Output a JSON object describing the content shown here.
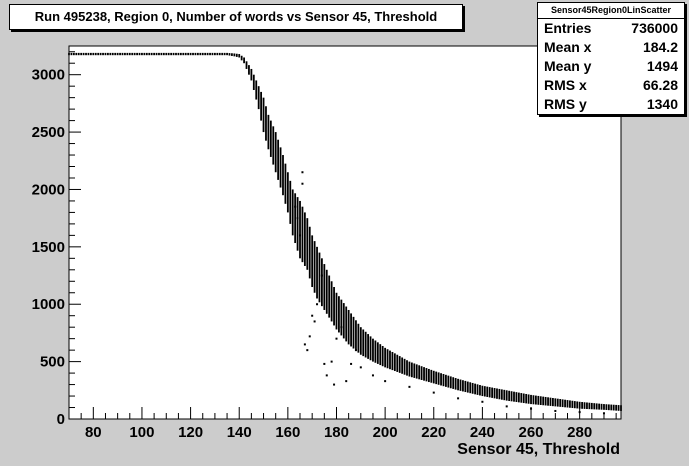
{
  "chart_data": {
    "type": "scatter",
    "title": "Run 495238, Region 0, Number of words vs Sensor 45, Threshold",
    "xlabel": "Sensor 45, Threshold",
    "ylabel": "",
    "xlim": [
      70,
      297
    ],
    "ylim": [
      0,
      3250
    ],
    "x_ticks": [
      80,
      100,
      120,
      140,
      160,
      180,
      200,
      220,
      240,
      260,
      280
    ],
    "y_ticks": [
      0,
      500,
      1000,
      1500,
      2000,
      2500,
      3000
    ],
    "grid": false,
    "legend": "none",
    "series": [
      {
        "x": [
          70,
          80,
          90,
          100,
          110,
          120,
          130,
          135,
          138,
          140,
          142,
          145,
          148,
          150,
          152,
          155,
          158,
          160,
          162,
          165,
          168,
          170,
          172,
          175,
          178,
          180,
          185,
          190,
          195,
          200,
          205,
          210,
          220,
          230,
          240,
          250,
          260,
          270,
          280,
          290,
          297
        ],
        "y_top": [
          3190,
          3190,
          3190,
          3190,
          3190,
          3190,
          3190,
          3190,
          3185,
          3180,
          3150,
          3050,
          2900,
          2800,
          2650,
          2500,
          2300,
          2150,
          2000,
          1900,
          1750,
          1600,
          1500,
          1350,
          1200,
          1100,
          950,
          800,
          700,
          620,
          560,
          500,
          420,
          350,
          290,
          250,
          210,
          180,
          150,
          130,
          120
        ],
        "y_bottom": [
          3170,
          3170,
          3170,
          3170,
          3170,
          3170,
          3170,
          3170,
          3160,
          3150,
          3100,
          2950,
          2700,
          2500,
          2350,
          2150,
          1950,
          1800,
          1600,
          1400,
          1300,
          1150,
          1050,
          950,
          850,
          780,
          650,
          560,
          500,
          450,
          410,
          370,
          310,
          250,
          200,
          160,
          130,
          110,
          90,
          80,
          70
        ]
      }
    ],
    "outliers": [
      {
        "x": 163,
        "y": 1850
      },
      {
        "x": 164,
        "y": 1750
      },
      {
        "x": 165,
        "y": 1600
      },
      {
        "x": 166,
        "y": 2150
      },
      {
        "x": 166,
        "y": 2050
      },
      {
        "x": 167,
        "y": 650
      },
      {
        "x": 168,
        "y": 600
      },
      {
        "x": 169,
        "y": 720
      },
      {
        "x": 170,
        "y": 900
      },
      {
        "x": 171,
        "y": 850
      },
      {
        "x": 172,
        "y": 1000
      },
      {
        "x": 174,
        "y": 1250
      },
      {
        "x": 175,
        "y": 480
      },
      {
        "x": 176,
        "y": 380
      },
      {
        "x": 178,
        "y": 500
      },
      {
        "x": 179,
        "y": 300
      },
      {
        "x": 180,
        "y": 700
      },
      {
        "x": 182,
        "y": 800
      },
      {
        "x": 184,
        "y": 330
      },
      {
        "x": 186,
        "y": 480
      },
      {
        "x": 188,
        "y": 600
      },
      {
        "x": 190,
        "y": 450
      },
      {
        "x": 195,
        "y": 380
      },
      {
        "x": 200,
        "y": 330
      },
      {
        "x": 210,
        "y": 280
      },
      {
        "x": 220,
        "y": 230
      },
      {
        "x": 230,
        "y": 180
      },
      {
        "x": 240,
        "y": 150
      },
      {
        "x": 250,
        "y": 110
      },
      {
        "x": 260,
        "y": 90
      },
      {
        "x": 270,
        "y": 70
      },
      {
        "x": 280,
        "y": 60
      },
      {
        "x": 290,
        "y": 50
      }
    ],
    "stats": {
      "name": "Sensor45Region0LinScatter",
      "rows": [
        {
          "label": "Entries",
          "value": "736000"
        },
        {
          "label": "Mean x",
          "value": "184.2"
        },
        {
          "label": "Mean y",
          "value": "1494"
        },
        {
          "label": "RMS x",
          "value": "66.28"
        },
        {
          "label": "RMS y",
          "value": "1340"
        }
      ]
    },
    "colors": {
      "background": "#cccccc",
      "frame": "#ffffff",
      "marker": "#000000"
    }
  }
}
